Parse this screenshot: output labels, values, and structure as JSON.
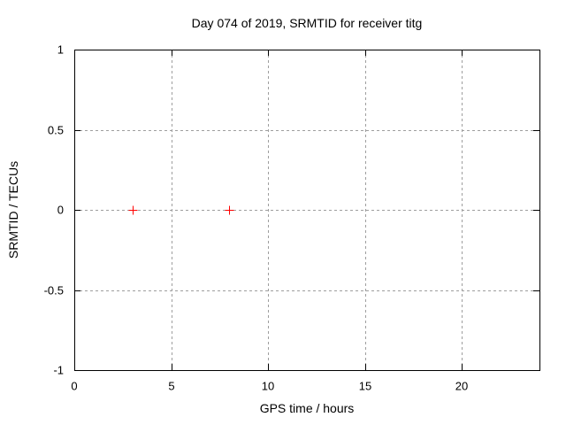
{
  "chart_data": {
    "type": "scatter",
    "title": "Day 074 of 2019, SRMTID for receiver titg",
    "xlabel": "GPS time / hours",
    "ylabel": "SRMTID / TECUs",
    "xlim": [
      0,
      24
    ],
    "ylim": [
      -1,
      1
    ],
    "xticks": [
      0,
      5,
      10,
      15,
      20
    ],
    "xtick_labels": [
      "0",
      "5",
      "10",
      "15",
      "20"
    ],
    "yticks": [
      1,
      0.5,
      0,
      -0.5,
      -1
    ],
    "ytick_labels": [
      "1",
      "0.5",
      "0",
      "-0.5",
      "-1"
    ],
    "grid": true,
    "legend": "none",
    "points": [
      [
        3,
        0
      ],
      [
        8,
        0
      ]
    ],
    "marker": {
      "shape": "plus",
      "color": "#ff0000",
      "size": 10
    },
    "colors": {
      "background": "#ffffff",
      "axis": "#000000",
      "grid": "#9e9e9e",
      "text": "#000000"
    }
  }
}
